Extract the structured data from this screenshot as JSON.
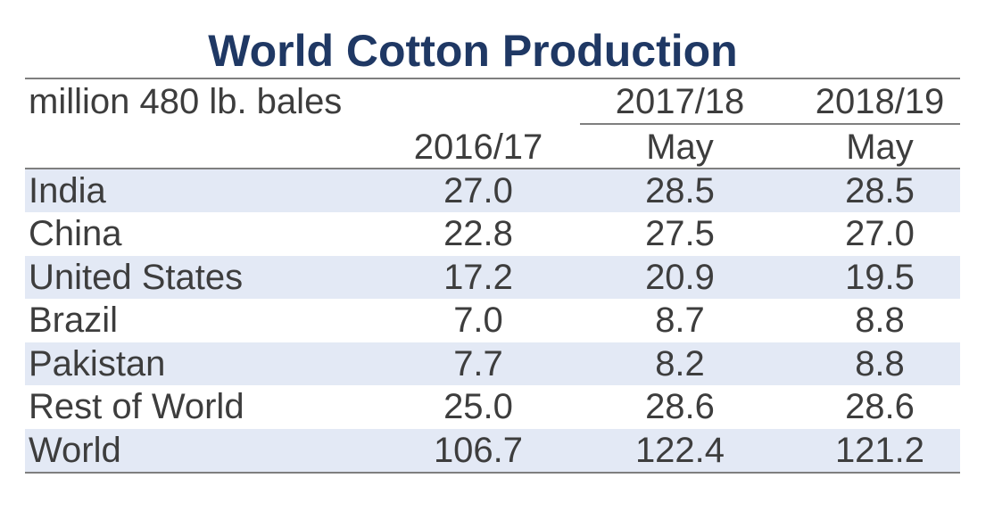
{
  "chart_data": {
    "type": "table",
    "title": "World Cotton Production",
    "unit_label": "million 480 lb. bales",
    "column_groups": [
      "",
      "2017/18",
      "2018/19"
    ],
    "columns": [
      "2016/17",
      "May",
      "May"
    ],
    "rows": [
      {
        "label": "India",
        "values": [
          "27.0",
          "28.5",
          "28.5"
        ]
      },
      {
        "label": "China",
        "values": [
          "22.8",
          "27.5",
          "27.0"
        ]
      },
      {
        "label": "United States",
        "values": [
          "17.2",
          "20.9",
          "19.5"
        ]
      },
      {
        "label": "Brazil",
        "values": [
          "7.0",
          "8.7",
          "8.8"
        ]
      },
      {
        "label": "Pakistan",
        "values": [
          "7.7",
          "8.2",
          "8.8"
        ]
      },
      {
        "label": "Rest of World",
        "values": [
          "25.0",
          "28.6",
          "28.6"
        ]
      },
      {
        "label": "World",
        "values": [
          "106.7",
          "122.4",
          "121.2"
        ]
      }
    ]
  },
  "colors": {
    "title": "#1f3864",
    "text": "#3d3d3d",
    "band": "#e3e9f5",
    "rule": "#7f7f7f"
  }
}
